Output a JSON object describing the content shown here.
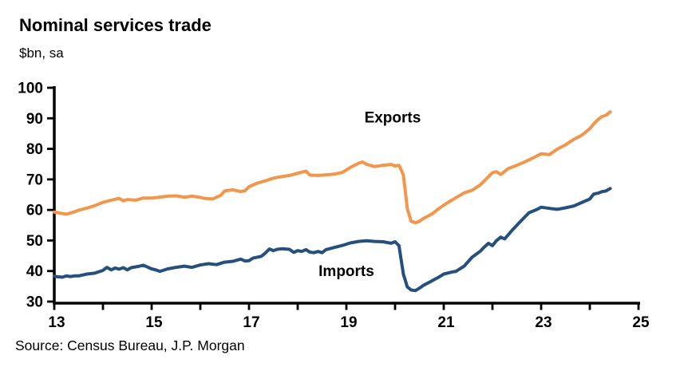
{
  "title": "Nominal services trade",
  "subtitle": "$bn, sa",
  "source": "Source: Census Bureau, J.P. Morgan",
  "chart_data": {
    "type": "line",
    "title": "Nominal services trade",
    "ylabel": "$bn, sa",
    "xlim": [
      13,
      25
    ],
    "ylim": [
      30,
      100
    ],
    "y_ticks": [
      30,
      40,
      50,
      60,
      70,
      80,
      90,
      100
    ],
    "x_ticks": [
      13,
      14,
      15,
      16,
      17,
      18,
      19,
      20,
      21,
      22,
      23,
      24,
      25
    ],
    "x_labeled_ticks": [
      13,
      15,
      17,
      19,
      21,
      23,
      25
    ],
    "grid": false,
    "legend": "inline-labels",
    "axis_color": "#000000",
    "series": [
      {
        "name": "Exports",
        "color": "#F2964B",
        "label_pos": {
          "x": 19.95,
          "y": 90.5
        },
        "points": [
          [
            13.0,
            59.3
          ],
          [
            13.08,
            59.1
          ],
          [
            13.17,
            58.8
          ],
          [
            13.25,
            58.6
          ],
          [
            13.33,
            59.0
          ],
          [
            13.42,
            59.4
          ],
          [
            13.5,
            59.9
          ],
          [
            13.67,
            60.6
          ],
          [
            13.83,
            61.4
          ],
          [
            14.0,
            62.5
          ],
          [
            14.17,
            63.2
          ],
          [
            14.33,
            63.8
          ],
          [
            14.42,
            63.0
          ],
          [
            14.5,
            63.4
          ],
          [
            14.67,
            63.2
          ],
          [
            14.83,
            63.9
          ],
          [
            15.0,
            63.9
          ],
          [
            15.17,
            64.2
          ],
          [
            15.33,
            64.5
          ],
          [
            15.5,
            64.6
          ],
          [
            15.67,
            64.2
          ],
          [
            15.83,
            64.5
          ],
          [
            16.0,
            64.1
          ],
          [
            16.08,
            63.8
          ],
          [
            16.25,
            63.6
          ],
          [
            16.42,
            64.8
          ],
          [
            16.5,
            66.2
          ],
          [
            16.67,
            66.6
          ],
          [
            16.83,
            66.0
          ],
          [
            16.92,
            66.3
          ],
          [
            17.0,
            67.6
          ],
          [
            17.17,
            68.8
          ],
          [
            17.33,
            69.5
          ],
          [
            17.5,
            70.4
          ],
          [
            17.67,
            70.9
          ],
          [
            17.83,
            71.3
          ],
          [
            18.0,
            72.0
          ],
          [
            18.17,
            72.7
          ],
          [
            18.25,
            71.4
          ],
          [
            18.42,
            71.3
          ],
          [
            18.58,
            71.5
          ],
          [
            18.75,
            71.7
          ],
          [
            18.92,
            72.3
          ],
          [
            19.08,
            73.9
          ],
          [
            19.25,
            75.3
          ],
          [
            19.33,
            75.7
          ],
          [
            19.42,
            74.9
          ],
          [
            19.58,
            74.2
          ],
          [
            19.75,
            74.6
          ],
          [
            19.92,
            74.9
          ],
          [
            20.0,
            74.4
          ],
          [
            20.08,
            74.6
          ],
          [
            20.17,
            71.5
          ],
          [
            20.25,
            60.5
          ],
          [
            20.33,
            56.3
          ],
          [
            20.42,
            55.8
          ],
          [
            20.5,
            56.3
          ],
          [
            20.58,
            57.2
          ],
          [
            20.75,
            58.6
          ],
          [
            20.92,
            60.7
          ],
          [
            21.08,
            62.4
          ],
          [
            21.25,
            64.0
          ],
          [
            21.42,
            65.6
          ],
          [
            21.58,
            66.4
          ],
          [
            21.75,
            68.2
          ],
          [
            21.92,
            70.9
          ],
          [
            22.0,
            72.2
          ],
          [
            22.08,
            72.5
          ],
          [
            22.17,
            71.6
          ],
          [
            22.33,
            73.6
          ],
          [
            22.5,
            74.6
          ],
          [
            22.67,
            75.8
          ],
          [
            22.83,
            77.0
          ],
          [
            23.0,
            78.4
          ],
          [
            23.17,
            78.1
          ],
          [
            23.33,
            79.9
          ],
          [
            23.5,
            81.3
          ],
          [
            23.67,
            83.1
          ],
          [
            23.83,
            84.4
          ],
          [
            24.0,
            86.6
          ],
          [
            24.08,
            88.2
          ],
          [
            24.17,
            89.6
          ],
          [
            24.25,
            90.6
          ],
          [
            24.33,
            91.0
          ],
          [
            24.42,
            92.1
          ]
        ]
      },
      {
        "name": "Imports",
        "color": "#254F7D",
        "label_pos": {
          "x": 19.0,
          "y": 40.2
        },
        "points": [
          [
            13.0,
            38.3
          ],
          [
            13.08,
            38.1
          ],
          [
            13.17,
            38.0
          ],
          [
            13.25,
            38.4
          ],
          [
            13.33,
            38.2
          ],
          [
            13.42,
            38.4
          ],
          [
            13.5,
            38.4
          ],
          [
            13.67,
            39.0
          ],
          [
            13.83,
            39.3
          ],
          [
            14.0,
            40.2
          ],
          [
            14.08,
            41.2
          ],
          [
            14.17,
            40.4
          ],
          [
            14.25,
            41.0
          ],
          [
            14.33,
            40.6
          ],
          [
            14.42,
            41.1
          ],
          [
            14.5,
            40.4
          ],
          [
            14.58,
            41.1
          ],
          [
            14.75,
            41.6
          ],
          [
            14.83,
            41.9
          ],
          [
            15.0,
            40.7
          ],
          [
            15.08,
            40.4
          ],
          [
            15.17,
            39.9
          ],
          [
            15.33,
            40.7
          ],
          [
            15.5,
            41.2
          ],
          [
            15.67,
            41.6
          ],
          [
            15.83,
            41.2
          ],
          [
            16.0,
            42.0
          ],
          [
            16.17,
            42.4
          ],
          [
            16.33,
            42.1
          ],
          [
            16.5,
            42.9
          ],
          [
            16.67,
            43.2
          ],
          [
            16.83,
            43.9
          ],
          [
            16.92,
            43.3
          ],
          [
            17.0,
            43.4
          ],
          [
            17.08,
            44.2
          ],
          [
            17.25,
            44.8
          ],
          [
            17.33,
            45.8
          ],
          [
            17.42,
            47.2
          ],
          [
            17.5,
            46.7
          ],
          [
            17.58,
            47.1
          ],
          [
            17.67,
            47.3
          ],
          [
            17.83,
            47.1
          ],
          [
            17.92,
            46.1
          ],
          [
            18.0,
            46.7
          ],
          [
            18.08,
            46.4
          ],
          [
            18.17,
            47.0
          ],
          [
            18.25,
            46.2
          ],
          [
            18.33,
            46.0
          ],
          [
            18.42,
            46.4
          ],
          [
            18.5,
            46.0
          ],
          [
            18.58,
            47.0
          ],
          [
            18.75,
            47.7
          ],
          [
            18.92,
            48.4
          ],
          [
            19.08,
            49.2
          ],
          [
            19.25,
            49.7
          ],
          [
            19.42,
            49.9
          ],
          [
            19.58,
            49.7
          ],
          [
            19.75,
            49.6
          ],
          [
            19.92,
            49.1
          ],
          [
            20.0,
            49.6
          ],
          [
            20.08,
            48.3
          ],
          [
            20.17,
            39.0
          ],
          [
            20.25,
            34.8
          ],
          [
            20.33,
            33.8
          ],
          [
            20.42,
            33.6
          ],
          [
            20.5,
            34.4
          ],
          [
            20.58,
            35.3
          ],
          [
            20.75,
            36.7
          ],
          [
            20.92,
            38.2
          ],
          [
            21.0,
            39.0
          ],
          [
            21.17,
            39.7
          ],
          [
            21.25,
            39.9
          ],
          [
            21.42,
            41.6
          ],
          [
            21.58,
            44.5
          ],
          [
            21.75,
            46.5
          ],
          [
            21.83,
            47.8
          ],
          [
            21.92,
            49.1
          ],
          [
            22.0,
            48.3
          ],
          [
            22.08,
            49.9
          ],
          [
            22.17,
            51.1
          ],
          [
            22.25,
            50.5
          ],
          [
            22.42,
            53.6
          ],
          [
            22.58,
            56.3
          ],
          [
            22.75,
            59.1
          ],
          [
            22.92,
            60.2
          ],
          [
            23.0,
            60.9
          ],
          [
            23.17,
            60.5
          ],
          [
            23.33,
            60.2
          ],
          [
            23.5,
            60.7
          ],
          [
            23.67,
            61.3
          ],
          [
            23.83,
            62.4
          ],
          [
            24.0,
            63.6
          ],
          [
            24.08,
            65.2
          ],
          [
            24.17,
            65.5
          ],
          [
            24.25,
            66.0
          ],
          [
            24.33,
            66.2
          ],
          [
            24.42,
            67.0
          ]
        ]
      }
    ]
  }
}
